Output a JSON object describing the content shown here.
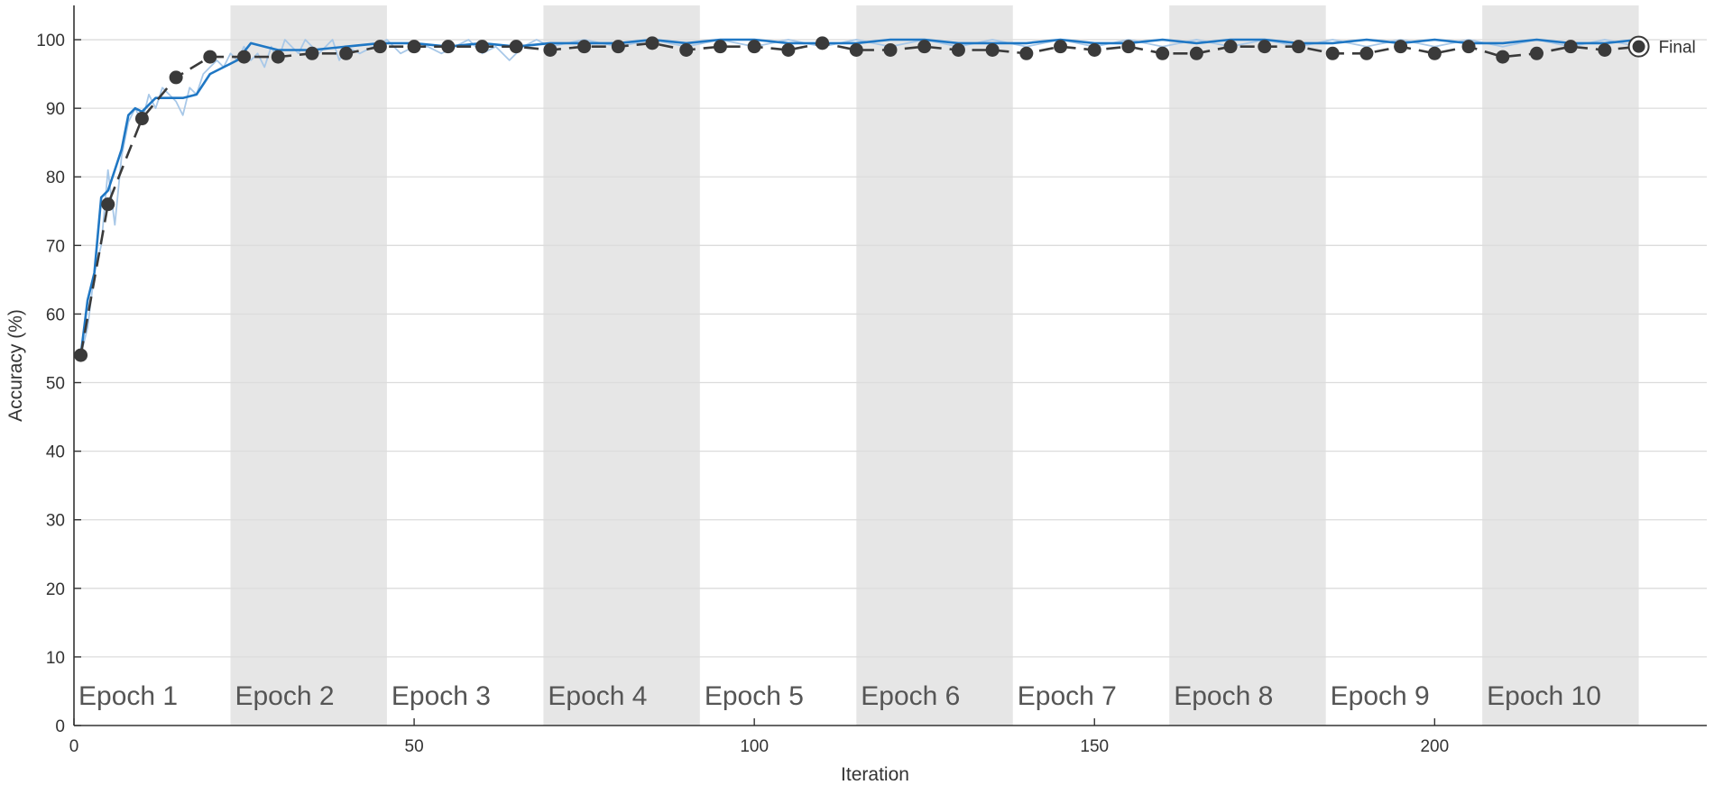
{
  "chart_data": {
    "type": "line",
    "xlabel": "Iteration",
    "ylabel": "Accuracy (%)",
    "xlim": [
      0,
      240
    ],
    "ylim": [
      0,
      105
    ],
    "xticks": [
      0,
      50,
      100,
      150,
      200
    ],
    "yticks": [
      0,
      10,
      20,
      30,
      40,
      50,
      60,
      70,
      80,
      90,
      100
    ],
    "grid": true,
    "colors": {
      "training_raw": "#a8c8e8",
      "training_smoothed": "#1f77c4",
      "validation": "#3a3a3a",
      "epoch_band": "#e6e6e6",
      "grid": "#dcdcdc",
      "axis": "#333333"
    },
    "epochs": [
      {
        "label": "Epoch 1",
        "start": 0,
        "end": 23
      },
      {
        "label": "Epoch 2",
        "start": 23,
        "end": 46
      },
      {
        "label": "Epoch 3",
        "start": 46,
        "end": 69
      },
      {
        "label": "Epoch 4",
        "start": 69,
        "end": 92
      },
      {
        "label": "Epoch 5",
        "start": 92,
        "end": 115
      },
      {
        "label": "Epoch 6",
        "start": 115,
        "end": 138
      },
      {
        "label": "Epoch 7",
        "start": 138,
        "end": 161
      },
      {
        "label": "Epoch 8",
        "start": 161,
        "end": 184
      },
      {
        "label": "Epoch 9",
        "start": 184,
        "end": 207
      },
      {
        "label": "Epoch 10",
        "start": 207,
        "end": 230
      }
    ],
    "final_label": "Final",
    "series": [
      {
        "key": "training_raw",
        "x": [
          1,
          2,
          3,
          4,
          5,
          6,
          7,
          8,
          9,
          10,
          11,
          12,
          13,
          14,
          15,
          16,
          17,
          18,
          19,
          20,
          21,
          22,
          23,
          24,
          25,
          26,
          27,
          28,
          29,
          30,
          31,
          32,
          33,
          34,
          35,
          36,
          37,
          38,
          39,
          40,
          42,
          44,
          46,
          48,
          50,
          52,
          54,
          56,
          58,
          60,
          62,
          64,
          66,
          68,
          70,
          75,
          80,
          85,
          90,
          95,
          100,
          105,
          110,
          115,
          120,
          125,
          130,
          135,
          140,
          145,
          150,
          155,
          160,
          165,
          170,
          175,
          180,
          185,
          190,
          195,
          200,
          205,
          210,
          215,
          220,
          225,
          230
        ],
        "y": [
          54,
          58,
          66,
          70,
          81,
          73,
          83,
          88,
          90,
          88,
          92,
          90,
          93,
          92,
          91,
          89,
          93,
          92,
          95,
          96,
          97,
          96,
          98,
          97,
          99,
          97,
          98,
          96,
          99,
          97,
          100,
          99,
          98,
          100,
          99,
          98,
          99,
          100,
          97,
          99,
          98,
          99,
          100,
          98,
          99,
          99,
          98,
          99,
          100,
          98,
          99,
          97,
          99,
          100,
          99,
          100,
          99,
          100,
          99,
          100,
          99,
          100,
          99,
          100,
          99,
          100,
          99,
          100,
          99,
          100,
          99,
          100,
          99,
          100,
          99,
          100,
          99,
          100,
          99,
          100,
          99,
          100,
          99,
          100,
          99,
          100,
          99
        ]
      },
      {
        "key": "training_smoothed",
        "x": [
          1,
          2,
          3,
          4,
          5,
          6,
          7,
          8,
          9,
          10,
          12,
          14,
          16,
          18,
          20,
          22,
          24,
          26,
          28,
          30,
          35,
          40,
          45,
          50,
          55,
          60,
          65,
          70,
          75,
          80,
          85,
          90,
          95,
          100,
          105,
          110,
          115,
          120,
          125,
          130,
          135,
          140,
          145,
          150,
          155,
          160,
          165,
          170,
          175,
          180,
          185,
          190,
          195,
          200,
          205,
          210,
          215,
          220,
          225,
          230
        ],
        "y": [
          54,
          62,
          66,
          77,
          78,
          81,
          84,
          89,
          90,
          89.5,
          91.5,
          91.5,
          91.5,
          92,
          95,
          96,
          97,
          99.5,
          99,
          98.5,
          98.5,
          99,
          99.5,
          99.5,
          99,
          99.5,
          99,
          99.5,
          99.5,
          99.5,
          100,
          99.5,
          100,
          100,
          99.5,
          99.5,
          99.5,
          100,
          100,
          99.5,
          99.5,
          99.5,
          100,
          99.5,
          99.5,
          100,
          99.5,
          100,
          100,
          99.5,
          99.5,
          100,
          99.5,
          100,
          99.5,
          99.5,
          100,
          99.5,
          99.5,
          100
        ]
      },
      {
        "key": "validation",
        "x": [
          1,
          5,
          10,
          15,
          20,
          25,
          30,
          35,
          40,
          45,
          50,
          55,
          60,
          65,
          70,
          75,
          80,
          85,
          90,
          95,
          100,
          105,
          110,
          115,
          120,
          125,
          130,
          135,
          140,
          145,
          150,
          155,
          160,
          165,
          170,
          175,
          180,
          185,
          190,
          195,
          200,
          205,
          210,
          215,
          220,
          225,
          230
        ],
        "y": [
          54,
          76,
          88.5,
          94.5,
          97.5,
          97.5,
          97.5,
          98,
          98,
          99,
          99,
          99,
          99,
          99,
          98.5,
          99,
          99,
          99.5,
          98.5,
          99,
          99,
          98.5,
          99.5,
          98.5,
          98.5,
          99,
          98.5,
          98.5,
          98,
          99,
          98.5,
          99,
          98,
          98,
          99,
          99,
          99,
          98,
          98,
          99,
          98,
          99,
          97.5,
          98,
          99,
          98.5,
          99
        ]
      }
    ]
  }
}
